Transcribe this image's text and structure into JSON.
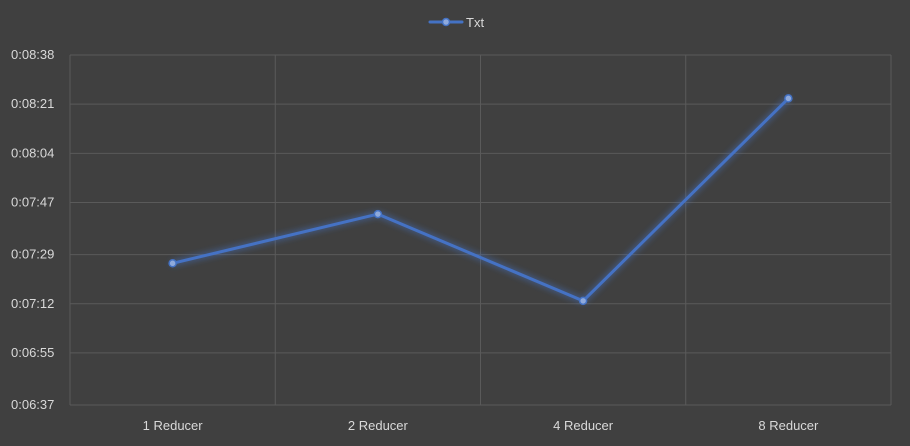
{
  "chart_data": {
    "type": "line",
    "title": "",
    "xlabel": "",
    "ylabel": "",
    "categories": [
      "1 Reducer",
      "2 Reducer",
      "4 Reducer",
      "8 Reducer"
    ],
    "series": [
      {
        "name": "Txt",
        "values": [
          "0:07:26",
          "0:07:43",
          "0:07:13",
          "0:08:23"
        ]
      }
    ],
    "y_ticks": [
      "0:06:37",
      "0:06:55",
      "0:07:12",
      "0:07:29",
      "0:07:47",
      "0:08:04",
      "0:08:21",
      "0:08:38"
    ],
    "ylim": [
      "0:06:37",
      "0:08:38"
    ],
    "grid": true,
    "legend_position": "top-center",
    "colors": {
      "background": "#404040",
      "gridline": "#5a5a5a",
      "text": "#d9d9d9",
      "series": "#4472c4",
      "marker": "#8faadc"
    }
  }
}
